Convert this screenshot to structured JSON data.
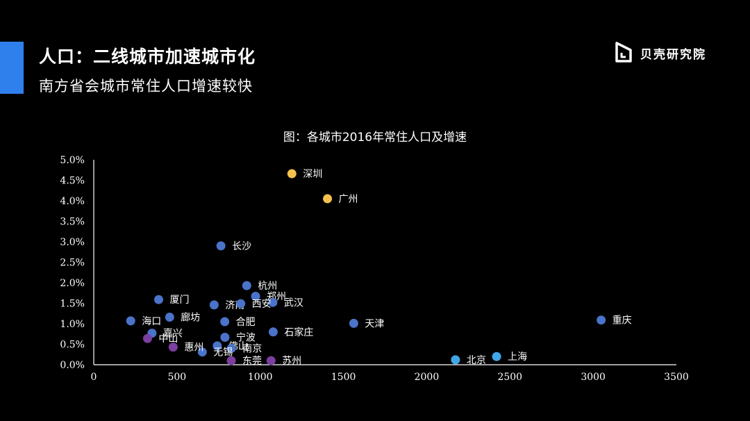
{
  "header": {
    "title": "人口：二线城市加速城市化",
    "subtitle": "南方省会城市常住人口增速较快",
    "logo_text": "贝壳研究院"
  },
  "colors": {
    "accent": "#2f80ed",
    "background": "#000000",
    "tier_top": "#f2c14e",
    "tier_main": "#4a73c9",
    "tier_low": "#7b3fa0",
    "tier_first": "#3fa7e8"
  },
  "chart_data": {
    "type": "scatter",
    "title": "图：各城市2016年常住人口及增速",
    "xlabel": "",
    "ylabel": "",
    "xlim": [
      0,
      3500
    ],
    "ylim": [
      0,
      0.05
    ],
    "xticks": [
      0,
      500,
      1000,
      1500,
      2000,
      2500,
      3000,
      3500
    ],
    "xtick_labels": [
      "0",
      "500",
      "1000",
      "1500",
      "2000",
      "2500",
      "3000",
      "3500"
    ],
    "yticks": [
      0,
      0.005,
      0.01,
      0.015,
      0.02,
      0.025,
      0.03,
      0.035,
      0.04,
      0.045,
      0.05
    ],
    "ytick_labels": [
      "0.0%",
      "0.5%",
      "1.0%",
      "1.5%",
      "2.0%",
      "2.5%",
      "3.0%",
      "3.5%",
      "4.0%",
      "4.5%",
      "5.0%"
    ],
    "grid": false,
    "legend": "none",
    "points": [
      {
        "label": "深圳",
        "x": 1190,
        "y": 0.0466,
        "color": "#f2c14e"
      },
      {
        "label": "广州",
        "x": 1404,
        "y": 0.0405,
        "color": "#f2c14e"
      },
      {
        "label": "长沙",
        "x": 764,
        "y": 0.029,
        "color": "#4a73c9"
      },
      {
        "label": "杭州",
        "x": 919,
        "y": 0.0193,
        "color": "#4a73c9"
      },
      {
        "label": "郑州",
        "x": 972,
        "y": 0.0167,
        "color": "#4a73c9"
      },
      {
        "label": "武汉",
        "x": 1076,
        "y": 0.0152,
        "color": "#4a73c9"
      },
      {
        "label": "厦门",
        "x": 390,
        "y": 0.0159,
        "color": "#4a73c9"
      },
      {
        "label": "济南",
        "x": 723,
        "y": 0.0146,
        "color": "#4a73c9"
      },
      {
        "label": "西安",
        "x": 883,
        "y": 0.0149,
        "color": "#4a73c9"
      },
      {
        "label": "海口",
        "x": 222,
        "y": 0.0107,
        "color": "#4a73c9"
      },
      {
        "label": "廊坊",
        "x": 456,
        "y": 0.0116,
        "color": "#4a73c9"
      },
      {
        "label": "合肥",
        "x": 787,
        "y": 0.0105,
        "color": "#4a73c9"
      },
      {
        "label": "天津",
        "x": 1562,
        "y": 0.0101,
        "color": "#4a73c9"
      },
      {
        "label": "重庆",
        "x": 3048,
        "y": 0.0109,
        "color": "#4a73c9"
      },
      {
        "label": "嘉兴",
        "x": 350,
        "y": 0.0077,
        "color": "#4a73c9"
      },
      {
        "label": "石家庄",
        "x": 1078,
        "y": 0.008,
        "color": "#4a73c9"
      },
      {
        "label": "宁波",
        "x": 788,
        "y": 0.0067,
        "color": "#4a73c9"
      },
      {
        "label": "佛山",
        "x": 742,
        "y": 0.0046,
        "color": "#4a73c9"
      },
      {
        "label": "南京",
        "x": 827,
        "y": 0.004,
        "color": "#4a73c9"
      },
      {
        "label": "无锡",
        "x": 652,
        "y": 0.0031,
        "color": "#4a73c9"
      },
      {
        "label": "中山",
        "x": 323,
        "y": 0.0064,
        "color": "#7b3fa0"
      },
      {
        "label": "惠州",
        "x": 477,
        "y": 0.0043,
        "color": "#7b3fa0"
      },
      {
        "label": "东莞",
        "x": 826,
        "y": 0.001,
        "color": "#7b3fa0"
      },
      {
        "label": "苏州",
        "x": 1065,
        "y": 0.001,
        "color": "#7b3fa0"
      },
      {
        "label": "北京",
        "x": 2173,
        "y": 0.0012,
        "color": "#3fa7e8"
      },
      {
        "label": "上海",
        "x": 2420,
        "y": 0.002,
        "color": "#3fa7e8"
      }
    ]
  }
}
